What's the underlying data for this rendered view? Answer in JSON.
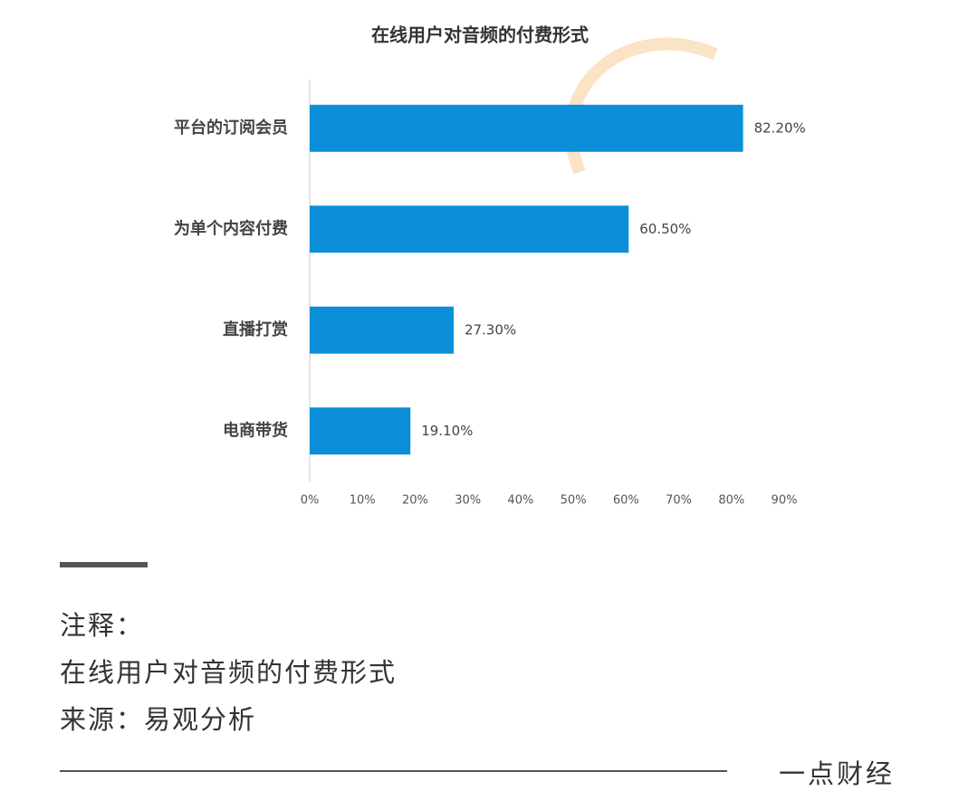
{
  "chart_data": {
    "type": "hbar",
    "title": "在线用户对音频的付费形式",
    "categories": [
      "平台的订阅会员",
      "为单个内容付费",
      "直播打赏",
      "电商带货"
    ],
    "values": [
      82.2,
      60.5,
      27.3,
      19.1
    ],
    "value_labels": [
      "82.20%",
      "60.50%",
      "27.30%",
      "19.10%"
    ],
    "color": "#0a8fd8",
    "xlim": [
      0,
      90
    ],
    "xticks": [
      {
        "value": 0,
        "label": "0%"
      },
      {
        "value": 10,
        "label": "10%"
      },
      {
        "value": 20,
        "label": "20%"
      },
      {
        "value": 30,
        "label": "30%"
      },
      {
        "value": 40,
        "label": "40%"
      },
      {
        "value": 50,
        "label": "50%"
      },
      {
        "value": 60,
        "label": "60%"
      },
      {
        "value": 70,
        "label": "70%"
      },
      {
        "value": 80,
        "label": "80%"
      },
      {
        "value": 90,
        "label": "90%"
      }
    ],
    "grid": false
  },
  "note": {
    "heading": "注释：",
    "text": "在线用户对音频的付费形式",
    "source": "来源：易观分析"
  },
  "footer": {
    "brand": "一点财经"
  }
}
